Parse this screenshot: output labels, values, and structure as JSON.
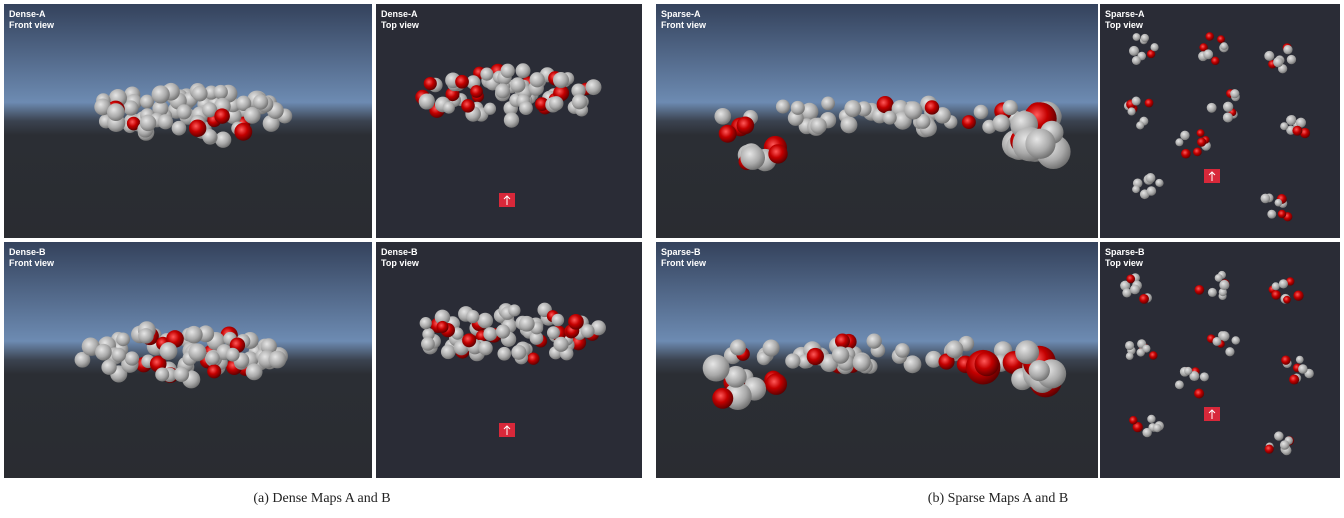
{
  "figures": [
    {
      "caption": "(a) Dense Maps A and B",
      "panels": [
        {
          "map": "Dense-A",
          "view": "Front view"
        },
        {
          "map": "Dense-A",
          "view": "Top view"
        },
        {
          "map": "Dense-B",
          "view": "Front view"
        },
        {
          "map": "Dense-B",
          "view": "Top view"
        }
      ]
    },
    {
      "caption": "(b) Sparse Maps A and B",
      "panels": [
        {
          "map": "Sparse-A",
          "view": "Front view"
        },
        {
          "map": "Sparse-A",
          "view": "Top view"
        },
        {
          "map": "Sparse-B",
          "view": "Front view"
        },
        {
          "map": "Sparse-B",
          "view": "Top view"
        }
      ]
    }
  ]
}
